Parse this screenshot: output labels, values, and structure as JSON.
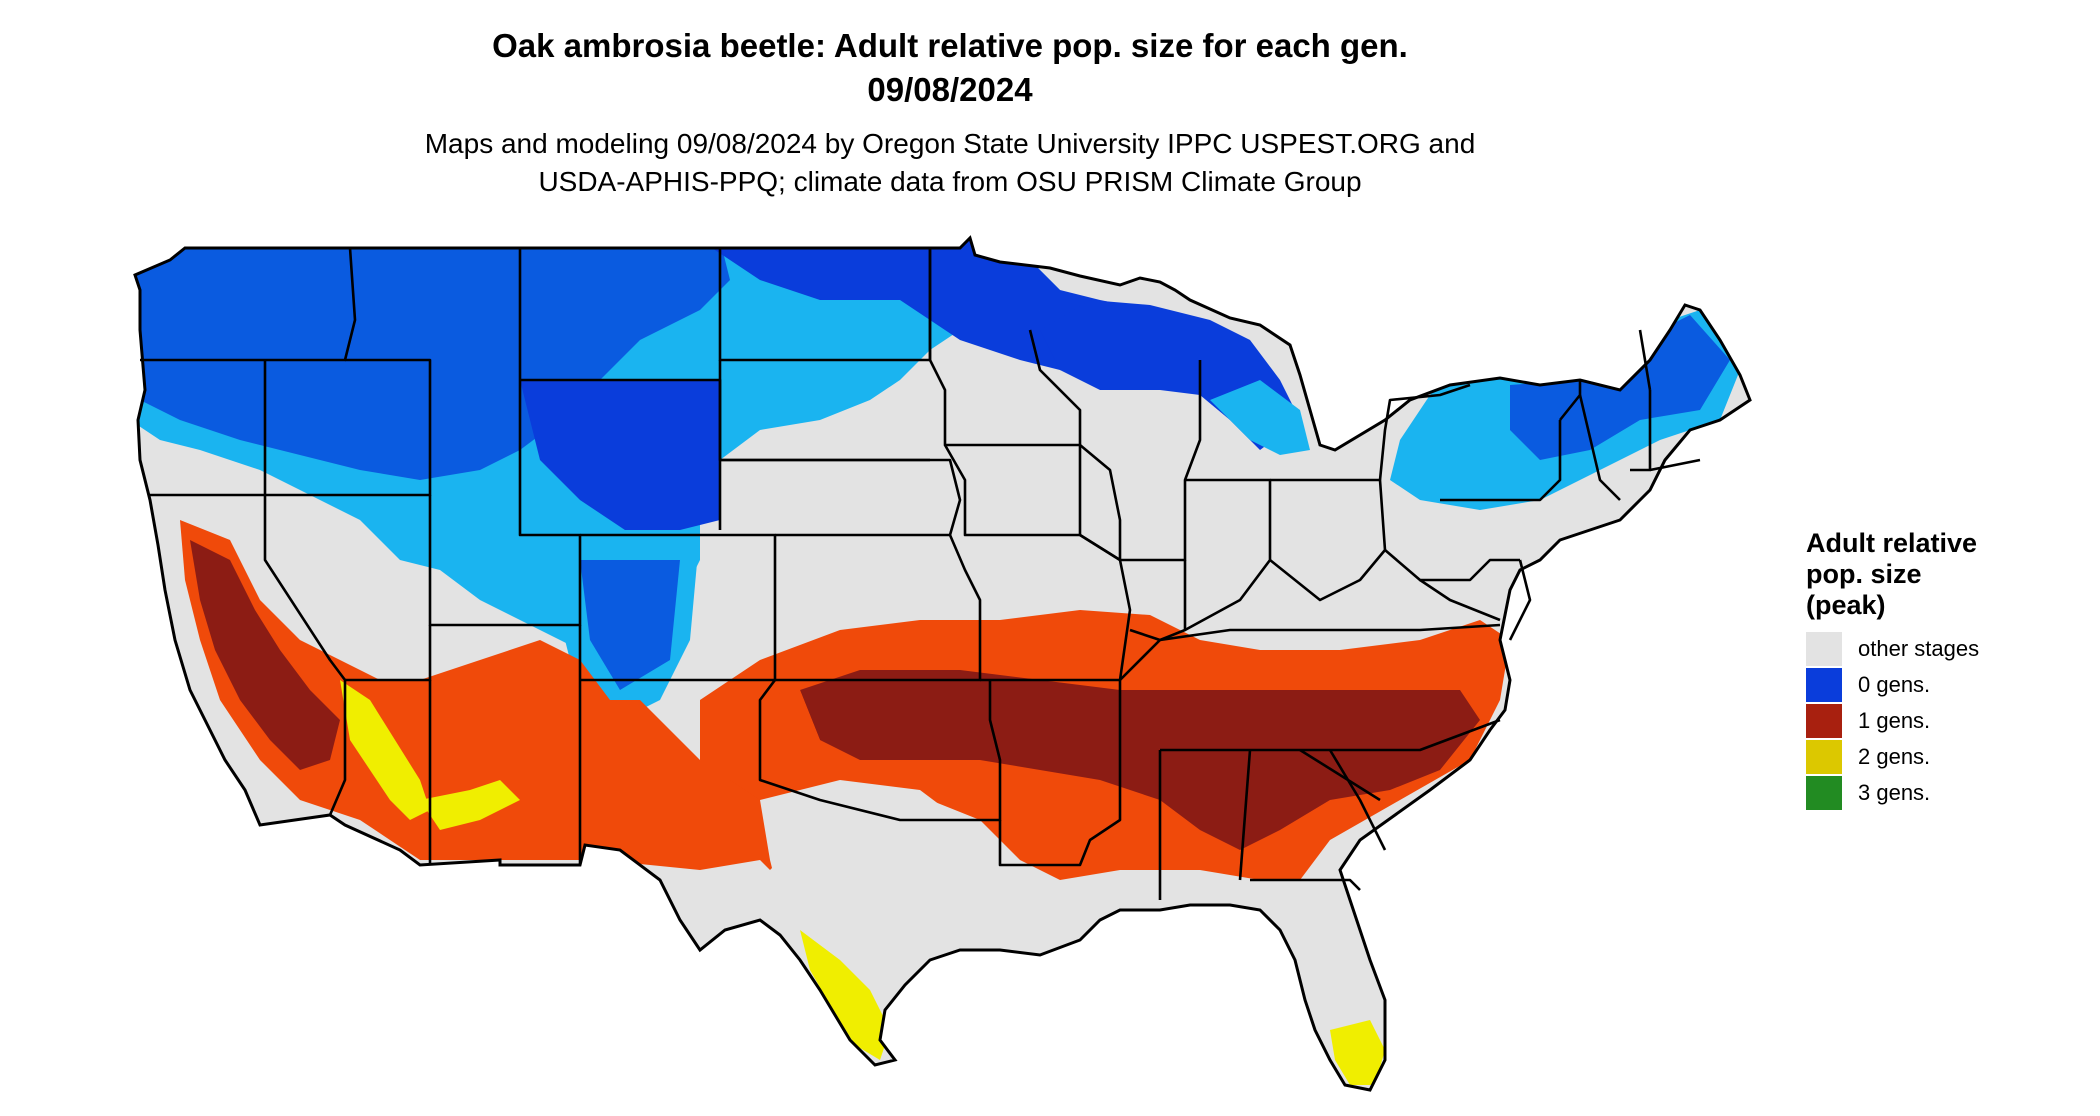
{
  "header": {
    "title_line1": "Oak ambrosia beetle: Adult relative pop. size for each gen.",
    "title_line2": "09/08/2024",
    "subtitle_line1": "Maps and modeling 09/08/2024 by Oregon State University IPPC USPEST.ORG and",
    "subtitle_line2": "USDA-APHIS-PPQ; climate data from OSU PRISM Climate Group"
  },
  "legend": {
    "title_lines": [
      "Adult relative",
      "pop. size",
      "(peak)"
    ],
    "items": [
      {
        "label": "other stages",
        "color": "#e3e3e3"
      },
      {
        "label": "0 gens.",
        "color": "#0a3ddb"
      },
      {
        "label": "1 gens.",
        "color": "#a8200f"
      },
      {
        "label": "2 gens.",
        "color": "#dcc800"
      },
      {
        "label": "3 gens.",
        "color": "#228b22"
      }
    ]
  },
  "map": {
    "region": "Contiguous United States",
    "colors": {
      "other_stages": "#e3e3e3",
      "zero_gens_dark": "#0a3ddb",
      "zero_gens_light": "#1ab4f0",
      "one_gen_dark": "#8c1c14",
      "one_gen_light": "#f04a0a",
      "two_gens": "#f0ee00",
      "border": "#000000"
    }
  }
}
